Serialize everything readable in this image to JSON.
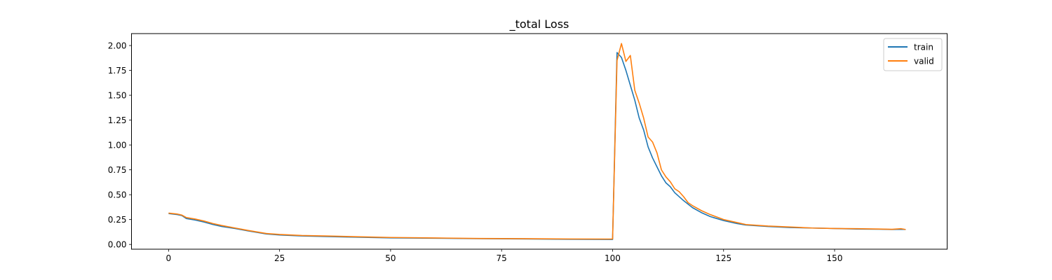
{
  "chart_data": {
    "type": "line",
    "title": "_total Loss",
    "xlabel": "",
    "ylabel": "",
    "xlim": [
      -8.35,
      175.35
    ],
    "ylim": [
      -0.048,
      2.12
    ],
    "xticks": [
      0,
      25,
      50,
      75,
      100,
      125,
      150
    ],
    "yticks": [
      0.0,
      0.25,
      0.5,
      0.75,
      1.0,
      1.25,
      1.5,
      1.75,
      2.0
    ],
    "xtick_labels": [
      "0",
      "25",
      "50",
      "75",
      "100",
      "125",
      "150"
    ],
    "ytick_labels": [
      "0.00",
      "0.25",
      "0.50",
      "0.75",
      "1.00",
      "1.25",
      "1.50",
      "1.75",
      "2.00"
    ],
    "grid": false,
    "legend_position": "top-right",
    "series": [
      {
        "name": "train",
        "color": "#1f77b4",
        "points": [
          [
            0,
            0.31
          ],
          [
            2,
            0.3
          ],
          [
            3,
            0.29
          ],
          [
            4,
            0.26
          ],
          [
            6,
            0.245
          ],
          [
            8,
            0.225
          ],
          [
            10,
            0.2
          ],
          [
            12,
            0.18
          ],
          [
            15,
            0.16
          ],
          [
            18,
            0.135
          ],
          [
            20,
            0.12
          ],
          [
            22,
            0.105
          ],
          [
            25,
            0.095
          ],
          [
            30,
            0.085
          ],
          [
            35,
            0.08
          ],
          [
            40,
            0.075
          ],
          [
            45,
            0.07
          ],
          [
            50,
            0.066
          ],
          [
            60,
            0.062
          ],
          [
            70,
            0.058
          ],
          [
            80,
            0.055
          ],
          [
            90,
            0.052
          ],
          [
            99,
            0.05
          ],
          [
            100,
            0.05
          ],
          [
            101,
            1.93
          ],
          [
            102,
            1.88
          ],
          [
            103,
            1.75
          ],
          [
            104,
            1.6
          ],
          [
            105,
            1.45
          ],
          [
            106,
            1.27
          ],
          [
            107,
            1.15
          ],
          [
            108,
            0.98
          ],
          [
            109,
            0.87
          ],
          [
            110,
            0.78
          ],
          [
            111,
            0.69
          ],
          [
            112,
            0.62
          ],
          [
            113,
            0.58
          ],
          [
            114,
            0.52
          ],
          [
            116,
            0.44
          ],
          [
            118,
            0.37
          ],
          [
            120,
            0.32
          ],
          [
            122,
            0.28
          ],
          [
            125,
            0.24
          ],
          [
            128,
            0.21
          ],
          [
            130,
            0.195
          ],
          [
            135,
            0.18
          ],
          [
            140,
            0.17
          ],
          [
            145,
            0.165
          ],
          [
            150,
            0.16
          ],
          [
            155,
            0.155
          ],
          [
            160,
            0.153
          ],
          [
            163,
            0.15
          ],
          [
            165,
            0.152
          ],
          [
            166,
            0.15
          ]
        ]
      },
      {
        "name": "valid",
        "color": "#ff7f0e",
        "points": [
          [
            0,
            0.315
          ],
          [
            2,
            0.305
          ],
          [
            3,
            0.295
          ],
          [
            4,
            0.27
          ],
          [
            6,
            0.255
          ],
          [
            8,
            0.235
          ],
          [
            10,
            0.21
          ],
          [
            12,
            0.19
          ],
          [
            15,
            0.165
          ],
          [
            18,
            0.14
          ],
          [
            20,
            0.125
          ],
          [
            22,
            0.11
          ],
          [
            25,
            0.1
          ],
          [
            30,
            0.09
          ],
          [
            35,
            0.085
          ],
          [
            40,
            0.08
          ],
          [
            45,
            0.075
          ],
          [
            50,
            0.07
          ],
          [
            60,
            0.065
          ],
          [
            70,
            0.06
          ],
          [
            80,
            0.058
          ],
          [
            90,
            0.055
          ],
          [
            99,
            0.054
          ],
          [
            100,
            0.055
          ],
          [
            101,
            1.85
          ],
          [
            102,
            2.02
          ],
          [
            103,
            1.84
          ],
          [
            104,
            1.9
          ],
          [
            105,
            1.55
          ],
          [
            106,
            1.42
          ],
          [
            107,
            1.27
          ],
          [
            108,
            1.08
          ],
          [
            109,
            1.03
          ],
          [
            110,
            0.92
          ],
          [
            111,
            0.75
          ],
          [
            112,
            0.68
          ],
          [
            113,
            0.63
          ],
          [
            114,
            0.56
          ],
          [
            115,
            0.53
          ],
          [
            116,
            0.48
          ],
          [
            117,
            0.42
          ],
          [
            118,
            0.39
          ],
          [
            120,
            0.34
          ],
          [
            122,
            0.3
          ],
          [
            125,
            0.25
          ],
          [
            128,
            0.22
          ],
          [
            130,
            0.2
          ],
          [
            135,
            0.185
          ],
          [
            140,
            0.175
          ],
          [
            145,
            0.165
          ],
          [
            150,
            0.16
          ],
          [
            155,
            0.158
          ],
          [
            160,
            0.155
          ],
          [
            163,
            0.152
          ],
          [
            165,
            0.158
          ],
          [
            166,
            0.15
          ]
        ]
      }
    ]
  }
}
